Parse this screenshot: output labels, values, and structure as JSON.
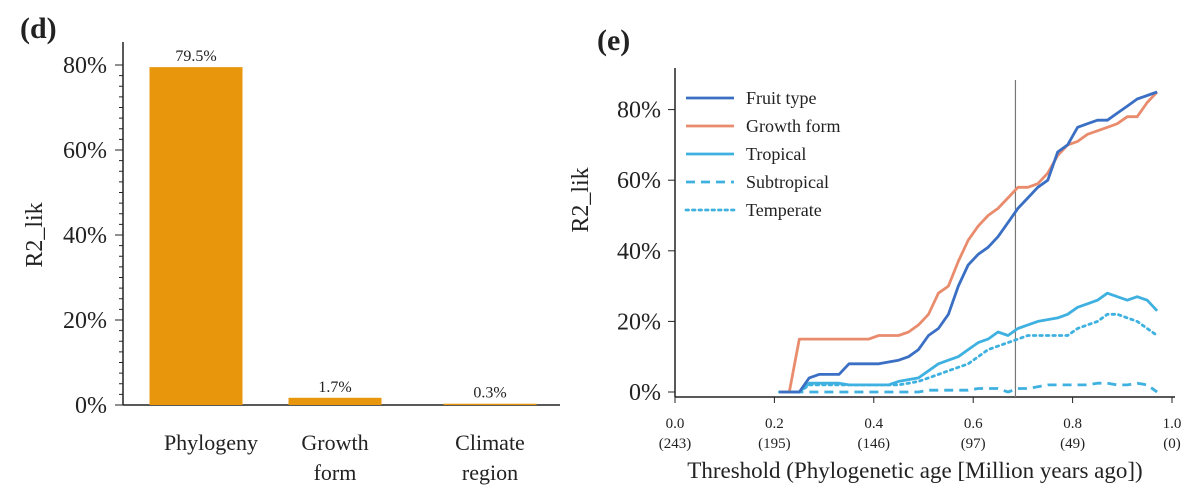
{
  "chart_data": [
    {
      "panel": "(d)",
      "type": "bar",
      "categories": [
        "Phylogeny",
        "Growth\nform",
        "Climate\nregion"
      ],
      "values": [
        79.5,
        1.7,
        0.3
      ],
      "data_labels": [
        "79.5%",
        "1.7%",
        "0.3%"
      ],
      "ylabel": "R2_lik",
      "ylim": [
        0,
        80
      ],
      "yticks": [
        "0%",
        "20%",
        "40%",
        "60%",
        "80%"
      ],
      "bar_color": "#E8960C"
    },
    {
      "panel": "(e)",
      "type": "line",
      "xlabel": "Threshold (Phylogenetic age [Million years ago])",
      "ylabel": "R2_lik",
      "xlim": [
        0,
        1
      ],
      "ylim": [
        0,
        90
      ],
      "xticks": [
        "0.0",
        "0.2",
        "0.4",
        "0.6",
        "0.8",
        "1.0"
      ],
      "xticks_secondary": [
        "(243)",
        "(195)",
        "(146)",
        "(97)",
        "(49)",
        "(0)"
      ],
      "yticks": [
        "0%",
        "20%",
        "40%",
        "60%",
        "80%"
      ],
      "vline_x": 0.685,
      "legend_position": "top-left",
      "series": [
        {
          "name": "Fruit type",
          "color": "#3A6FC4",
          "dash": "solid",
          "x": [
            0.21,
            0.23,
            0.25,
            0.27,
            0.29,
            0.31,
            0.33,
            0.35,
            0.37,
            0.39,
            0.41,
            0.43,
            0.45,
            0.47,
            0.49,
            0.51,
            0.53,
            0.55,
            0.57,
            0.59,
            0.61,
            0.63,
            0.65,
            0.67,
            0.69,
            0.71,
            0.73,
            0.75,
            0.77,
            0.79,
            0.81,
            0.83,
            0.85,
            0.87,
            0.89,
            0.91,
            0.93,
            0.95,
            0.97
          ],
          "y": [
            0,
            0,
            0,
            4,
            5,
            5,
            5,
            8,
            8,
            8,
            8,
            8.5,
            9,
            10,
            12,
            16,
            18,
            22,
            30,
            36,
            39,
            41,
            44,
            48,
            52,
            55,
            58,
            60,
            68,
            70,
            75,
            76,
            77,
            77,
            79,
            81,
            83,
            84,
            85
          ]
        },
        {
          "name": "Growth form",
          "color": "#E98C6D",
          "dash": "solid",
          "x": [
            0.21,
            0.23,
            0.25,
            0.27,
            0.29,
            0.31,
            0.33,
            0.35,
            0.37,
            0.39,
            0.41,
            0.43,
            0.45,
            0.47,
            0.49,
            0.51,
            0.53,
            0.55,
            0.57,
            0.59,
            0.61,
            0.63,
            0.65,
            0.67,
            0.69,
            0.71,
            0.73,
            0.75,
            0.77,
            0.79,
            0.81,
            0.83,
            0.85,
            0.87,
            0.89,
            0.91,
            0.93,
            0.95,
            0.97
          ],
          "y": [
            0,
            0,
            15,
            15,
            15,
            15,
            15,
            15,
            15,
            15,
            16,
            16,
            16,
            17,
            19,
            22,
            28,
            30,
            37,
            43,
            47,
            50,
            52,
            55,
            58,
            58,
            59,
            62,
            67,
            70,
            71,
            73,
            74,
            75,
            76,
            78,
            78,
            82,
            85
          ]
        },
        {
          "name": "Tropical",
          "color": "#3FB1E0",
          "dash": "solid",
          "x": [
            0.21,
            0.23,
            0.25,
            0.27,
            0.29,
            0.31,
            0.33,
            0.35,
            0.37,
            0.39,
            0.41,
            0.43,
            0.45,
            0.47,
            0.49,
            0.51,
            0.53,
            0.55,
            0.57,
            0.59,
            0.61,
            0.63,
            0.65,
            0.67,
            0.69,
            0.71,
            0.73,
            0.75,
            0.77,
            0.79,
            0.81,
            0.83,
            0.85,
            0.87,
            0.89,
            0.91,
            0.93,
            0.95,
            0.97
          ],
          "y": [
            0,
            0,
            0,
            2.5,
            2.5,
            2.5,
            2.5,
            2,
            2,
            2,
            2,
            2,
            3,
            3.5,
            4,
            6,
            8,
            9,
            10,
            12,
            14,
            15,
            17,
            16,
            18,
            19,
            20,
            20.5,
            21,
            22,
            24,
            25,
            26,
            28,
            27,
            26,
            27,
            26,
            23
          ]
        },
        {
          "name": "Subtropical",
          "color": "#3FB1E0",
          "dash": "dashed",
          "x": [
            0.21,
            0.23,
            0.25,
            0.27,
            0.29,
            0.31,
            0.33,
            0.35,
            0.37,
            0.39,
            0.41,
            0.43,
            0.45,
            0.47,
            0.49,
            0.51,
            0.53,
            0.55,
            0.57,
            0.59,
            0.61,
            0.63,
            0.65,
            0.67,
            0.69,
            0.71,
            0.73,
            0.75,
            0.77,
            0.79,
            0.81,
            0.83,
            0.85,
            0.87,
            0.89,
            0.91,
            0.93,
            0.95,
            0.97
          ],
          "y": [
            0,
            0,
            0,
            0,
            0,
            0,
            0,
            0,
            0,
            0,
            0,
            0,
            0,
            0,
            0,
            0.5,
            0.5,
            0.5,
            0.5,
            0.5,
            1,
            1,
            1,
            0,
            1,
            1,
            1.5,
            2,
            2,
            2,
            2,
            2,
            2.5,
            2.5,
            2,
            2,
            2.5,
            2,
            0
          ]
        },
        {
          "name": "Temperate",
          "color": "#3FB1E0",
          "dash": "dotted",
          "x": [
            0.21,
            0.23,
            0.25,
            0.27,
            0.29,
            0.31,
            0.33,
            0.35,
            0.37,
            0.39,
            0.41,
            0.43,
            0.45,
            0.47,
            0.49,
            0.51,
            0.53,
            0.55,
            0.57,
            0.59,
            0.61,
            0.63,
            0.65,
            0.67,
            0.69,
            0.71,
            0.73,
            0.75,
            0.77,
            0.79,
            0.81,
            0.83,
            0.85,
            0.87,
            0.89,
            0.91,
            0.93,
            0.95,
            0.97
          ],
          "y": [
            0,
            0,
            0,
            2,
            2,
            2,
            2,
            2,
            2,
            2,
            2,
            2,
            2,
            2.5,
            3,
            4,
            5,
            6,
            7,
            8,
            10,
            12,
            13,
            14,
            15,
            16,
            16,
            16,
            16,
            16,
            18,
            19,
            20,
            22,
            22,
            21,
            20,
            18,
            16
          ]
        }
      ]
    }
  ]
}
